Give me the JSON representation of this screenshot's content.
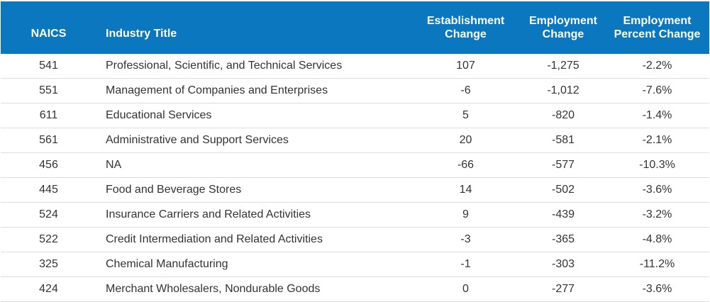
{
  "table": {
    "headers": {
      "naics": "NAICS",
      "title": "Industry Title",
      "est_change_line1": "Establishment",
      "est_change_line2": "Change",
      "emp_change_line1": "Employment",
      "emp_change_line2": "Change",
      "emp_pct_line1": "Employment",
      "emp_pct_line2": "Percent Change"
    },
    "rows": [
      {
        "naics": "541",
        "title": "Professional, Scientific, and Technical Services",
        "est_change": "107",
        "emp_change": "-1,275",
        "emp_pct": "-2.2%"
      },
      {
        "naics": "551",
        "title": "Management of Companies and Enterprises",
        "est_change": "-6",
        "emp_change": "-1,012",
        "emp_pct": "-7.6%"
      },
      {
        "naics": "611",
        "title": "Educational Services",
        "est_change": "5",
        "emp_change": "-820",
        "emp_pct": "-1.4%"
      },
      {
        "naics": "561",
        "title": "Administrative and Support Services",
        "est_change": "20",
        "emp_change": "-581",
        "emp_pct": "-2.1%"
      },
      {
        "naics": "456",
        "title": "NA",
        "est_change": "-66",
        "emp_change": "-577",
        "emp_pct": "-10.3%"
      },
      {
        "naics": "445",
        "title": "Food and Beverage Stores",
        "est_change": "14",
        "emp_change": "-502",
        "emp_pct": "-3.6%"
      },
      {
        "naics": "524",
        "title": "Insurance Carriers and Related Activities",
        "est_change": "9",
        "emp_change": "-439",
        "emp_pct": "-3.2%"
      },
      {
        "naics": "522",
        "title": "Credit Intermediation and Related Activities",
        "est_change": "-3",
        "emp_change": "-365",
        "emp_pct": "-4.8%"
      },
      {
        "naics": "325",
        "title": "Chemical Manufacturing",
        "est_change": "-1",
        "emp_change": "-303",
        "emp_pct": "-11.2%"
      },
      {
        "naics": "424",
        "title": "Merchant Wholesalers, Nondurable Goods",
        "est_change": "0",
        "emp_change": "-277",
        "emp_pct": "-3.6%"
      }
    ]
  },
  "colors": {
    "header_bg": "#0a77bf",
    "header_text": "#ffffff",
    "body_text": "#333333",
    "row_border": "#dddddd"
  }
}
